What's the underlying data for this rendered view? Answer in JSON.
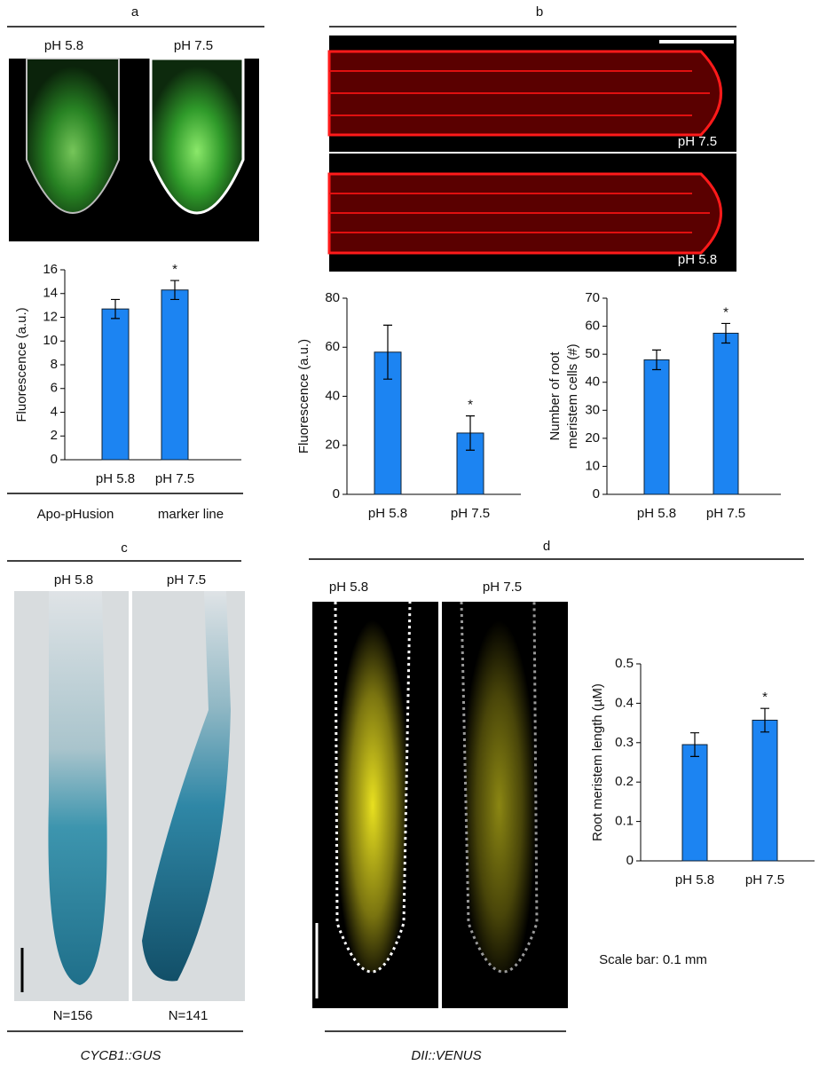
{
  "panel_labels": [
    "a",
    "b",
    "c",
    "d"
  ],
  "panel_a": {
    "image_labels": [
      "pH 5.8",
      "pH 7.5"
    ],
    "caption": [
      "Apo-pHusion",
      "marker line"
    ]
  },
  "panel_b": {
    "image_labels": [
      "pH 7.5",
      "pH 5.8"
    ]
  },
  "panel_c": {
    "image_labels": [
      "pH 5.8",
      "pH 7.5"
    ],
    "counts": [
      "N=156",
      "N=141"
    ],
    "caption": "CYCB1::GUS"
  },
  "panel_d": {
    "image_labels": [
      "pH 5.8",
      "pH 7.5"
    ],
    "caption": "DII::VENUS",
    "note": "Scale bar: 0.1 mm"
  },
  "chart_data": [
    {
      "type": "bar",
      "ylabel": [
        "Fluorescence (a.u.)"
      ],
      "categories": [
        "pH 5.8",
        "pH 7.5"
      ],
      "values": [
        12.7,
        14.3
      ],
      "errors": [
        0.8,
        0.8
      ],
      "significant": [
        false,
        true
      ],
      "annotation": "*",
      "color": "#1c84f2",
      "ylim": [
        0,
        16
      ],
      "yticks": [
        0,
        2,
        4,
        6,
        8,
        10,
        12,
        14,
        16
      ]
    },
    {
      "type": "bar",
      "ylabel": [
        "Fluorescence (a.u.)"
      ],
      "categories": [
        "pH 5.8",
        "pH 7.5"
      ],
      "values": [
        58,
        25
      ],
      "errors": [
        11,
        7
      ],
      "significant": [
        false,
        true
      ],
      "annotation": "*",
      "color": "#1c84f2",
      "ylim": [
        0,
        80
      ],
      "yticks": [
        0,
        20,
        40,
        60,
        80
      ]
    },
    {
      "type": "bar",
      "ylabel": [
        "Number of root",
        "meristem cells (#)"
      ],
      "categories": [
        "pH 5.8",
        "pH 7.5"
      ],
      "values": [
        48,
        57.5
      ],
      "errors": [
        3.5,
        3.5
      ],
      "significant": [
        false,
        true
      ],
      "annotation": "*",
      "color": "#1c84f2",
      "ylim": [
        0,
        70
      ],
      "yticks": [
        0,
        10,
        20,
        30,
        40,
        50,
        60,
        70
      ]
    },
    {
      "type": "bar",
      "ylabel": [
        "Root meristem length (µM)"
      ],
      "categories": [
        "pH 5.8",
        "pH 7.5"
      ],
      "values": [
        0.295,
        0.357
      ],
      "errors": [
        0.03,
        0.03
      ],
      "significant": [
        false,
        true
      ],
      "annotation": "*",
      "color": "#1c84f2",
      "ylim": [
        0,
        0.5
      ],
      "yticks": [
        0,
        0.1,
        0.2,
        0.3,
        0.4,
        0.5
      ]
    }
  ]
}
